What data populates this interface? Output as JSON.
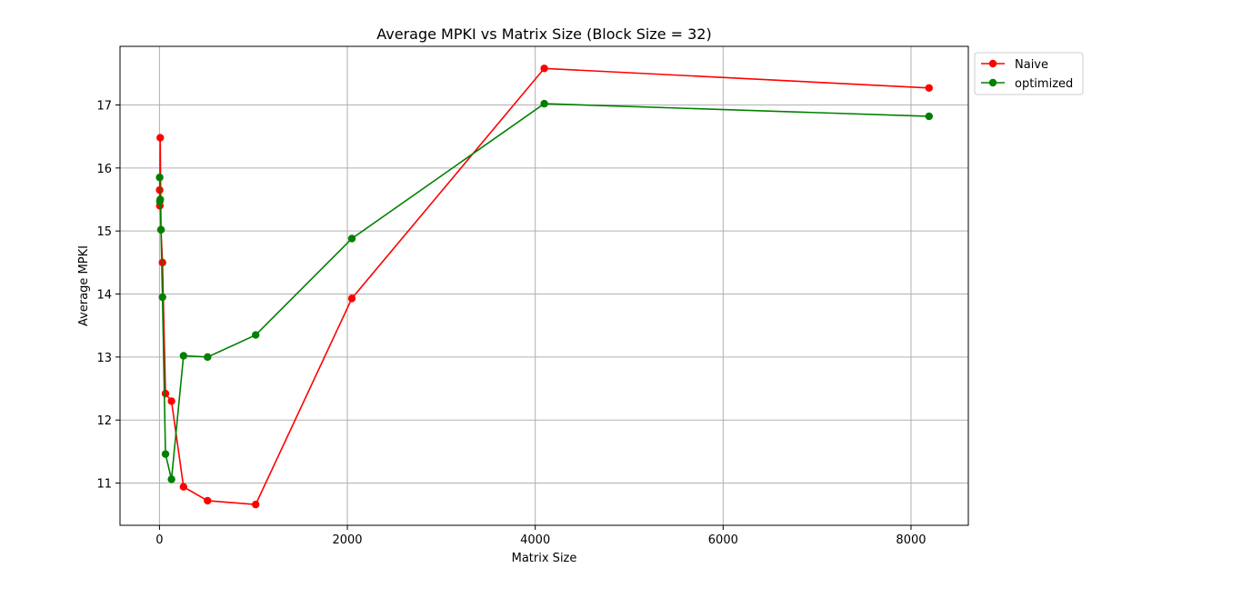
{
  "chart_data": {
    "type": "line",
    "title": "Average MPKI vs Matrix Size (Block Size = 32)",
    "xlabel": "Matrix Size",
    "ylabel": "Average MPKI",
    "xlim": [
      -420,
      8610
    ],
    "ylim": [
      10.33,
      17.93
    ],
    "xticks": [
      0,
      2000,
      4000,
      6000,
      8000
    ],
    "yticks": [
      11,
      12,
      13,
      14,
      15,
      16,
      17
    ],
    "grid": true,
    "legend_position": "upper-right-outside",
    "series": [
      {
        "name": "Naive",
        "color": "#ff0000",
        "points": [
          [
            2,
            15.65
          ],
          [
            4,
            15.4
          ],
          [
            8,
            16.48
          ],
          [
            16,
            15.02
          ],
          [
            32,
            14.5
          ],
          [
            64,
            12.42
          ],
          [
            128,
            12.3
          ],
          [
            256,
            10.94
          ],
          [
            512,
            10.72
          ],
          [
            1024,
            10.66
          ],
          [
            2048,
            13.93
          ],
          [
            4096,
            17.58
          ],
          [
            8192,
            17.27
          ]
        ]
      },
      {
        "name": "optimized",
        "color": "#008000",
        "points": [
          [
            2,
            15.85
          ],
          [
            4,
            15.47
          ],
          [
            8,
            15.5
          ],
          [
            16,
            15.02
          ],
          [
            32,
            13.95
          ],
          [
            64,
            11.46
          ],
          [
            128,
            11.06
          ],
          [
            256,
            13.02
          ],
          [
            512,
            13.0
          ],
          [
            1024,
            13.35
          ],
          [
            2048,
            14.88
          ],
          [
            4096,
            17.02
          ],
          [
            8192,
            16.82
          ]
        ]
      }
    ]
  }
}
